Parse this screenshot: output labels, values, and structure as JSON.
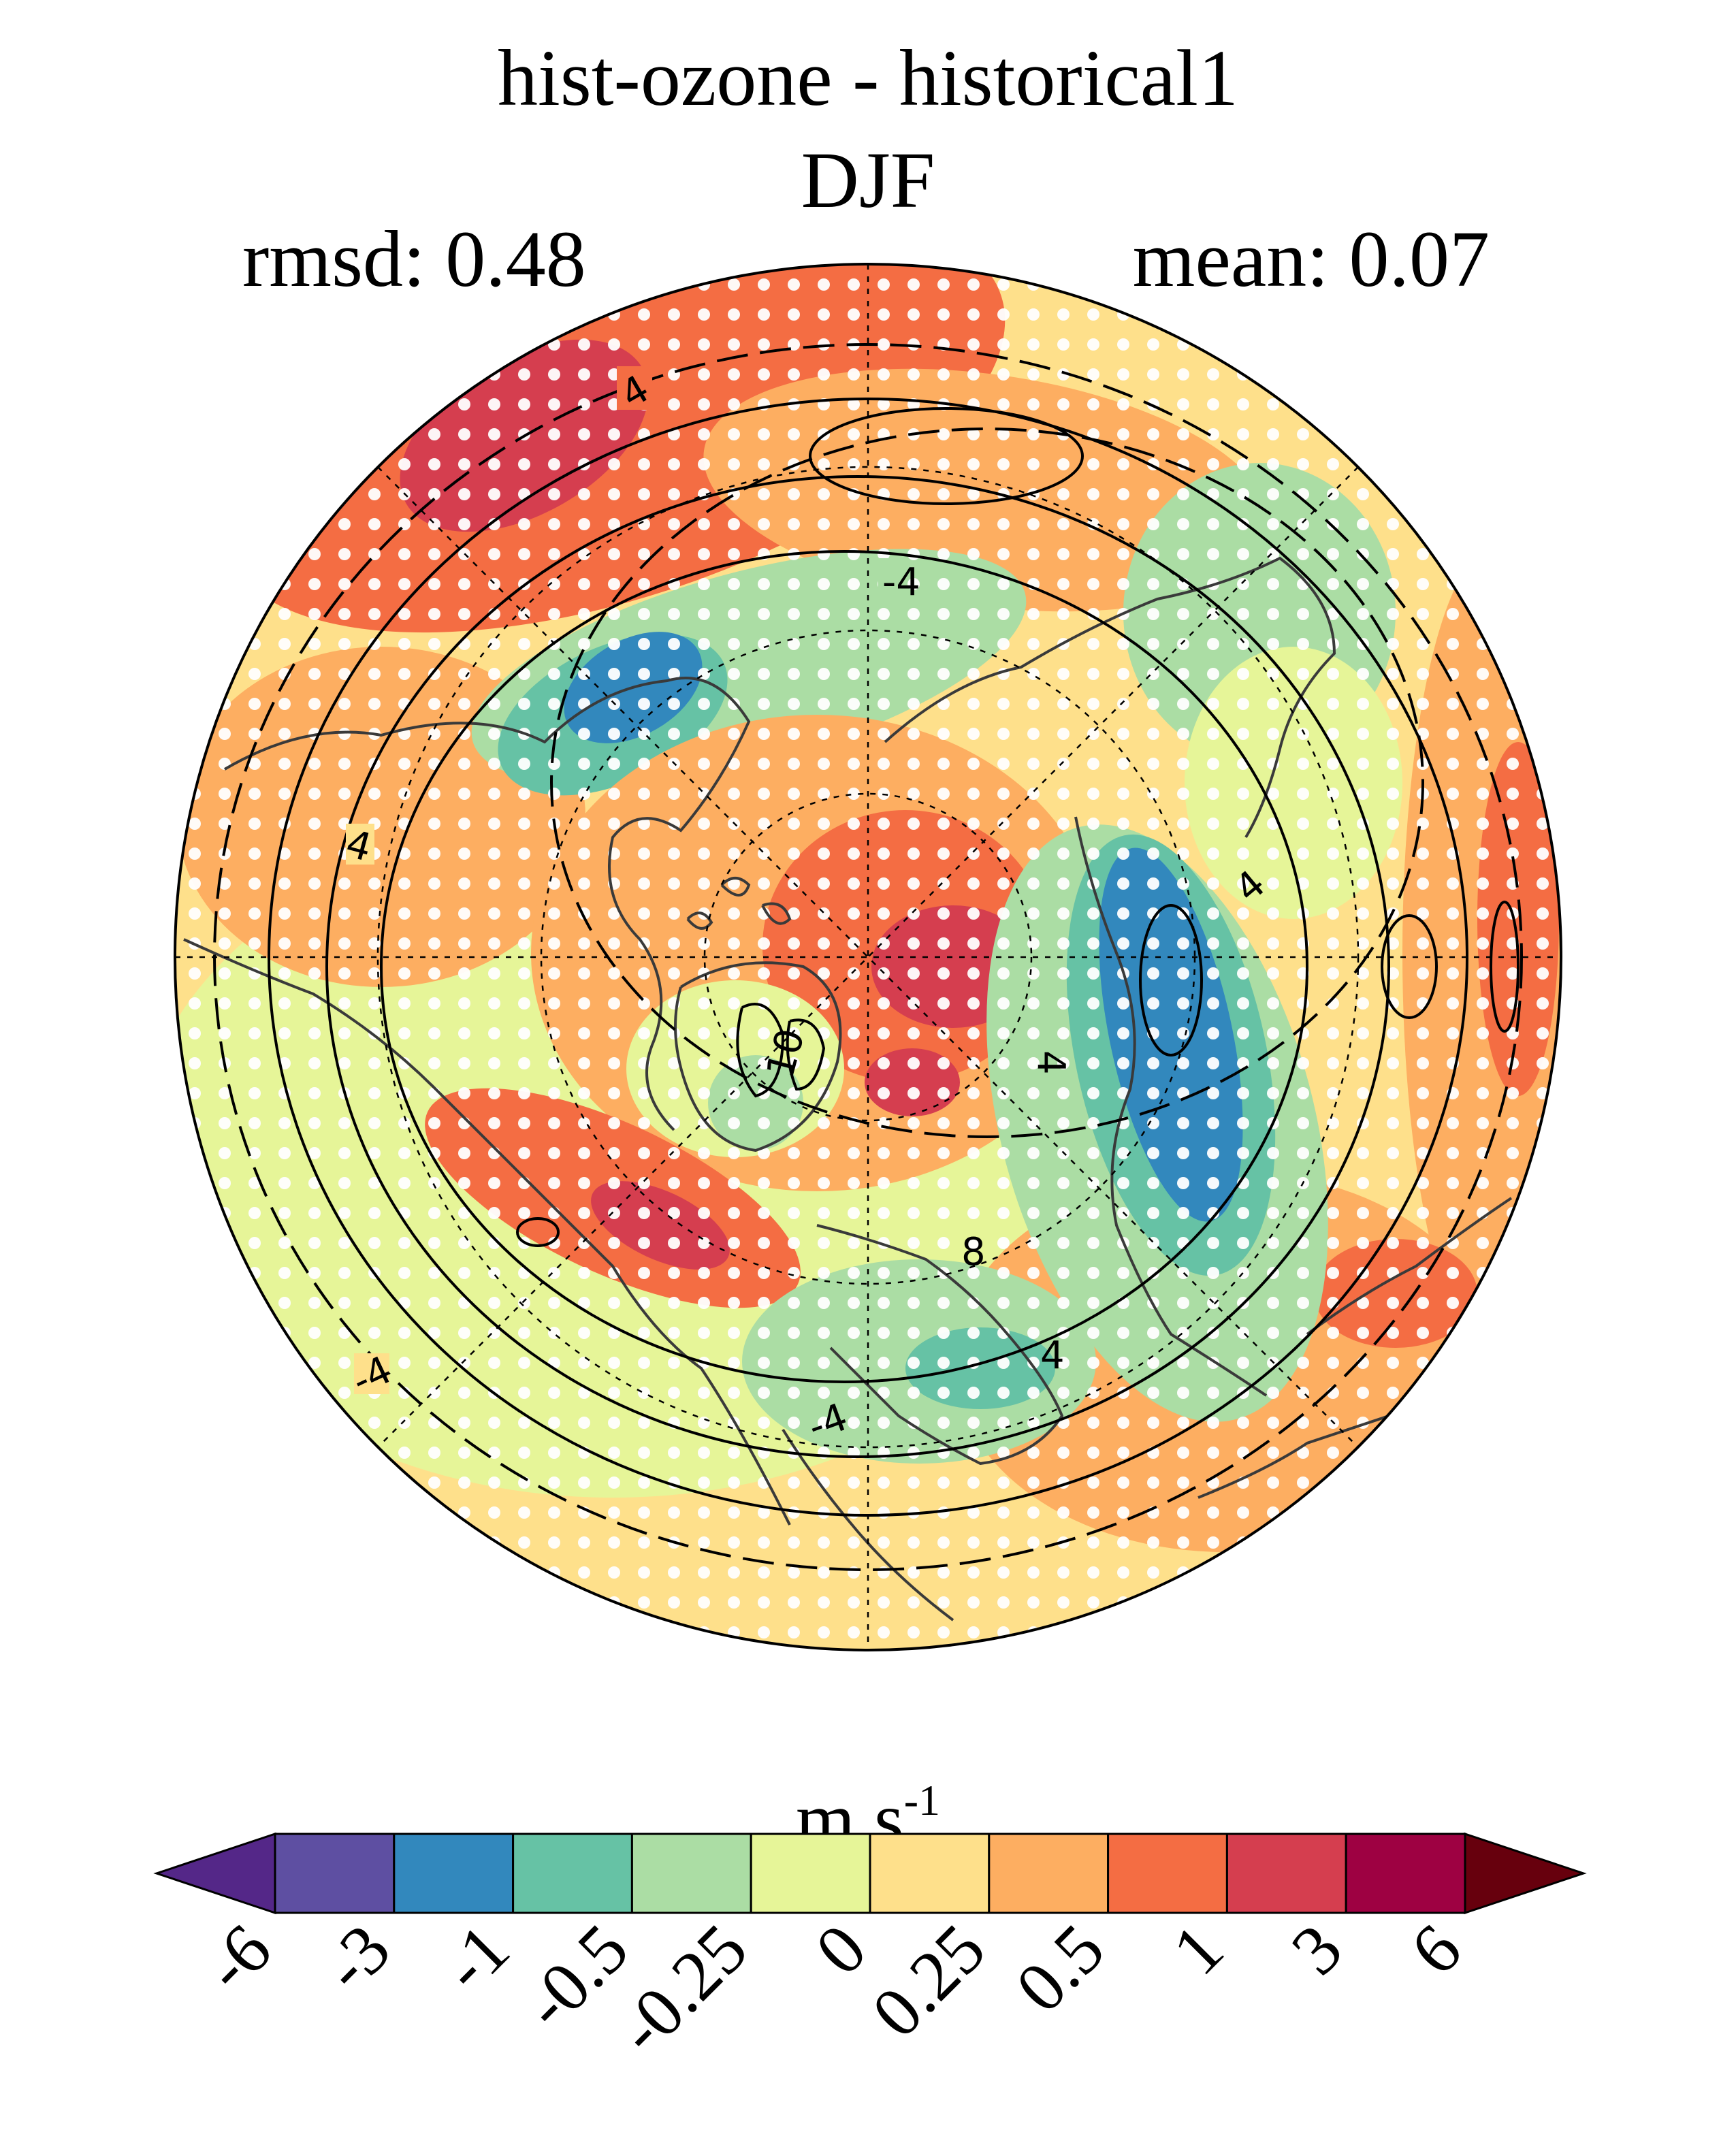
{
  "title_line1": "hist-ozone - historical1",
  "title_line2": "DJF",
  "stat_left": "rmsd: 0.48",
  "stat_right": "mean: 0.07",
  "units_base": "m s",
  "units_exp": "-1",
  "chart_data": {
    "type": "heatmap",
    "projection": "north-polar-stereographic",
    "title": "hist-ozone - historical1 DJF",
    "rmsd": 0.48,
    "mean": 0.07,
    "stippling": true,
    "contour_labels": [
      "4",
      "-4",
      "4",
      "4",
      "-4",
      "4",
      "4",
      "-4",
      "8",
      "10"
    ],
    "colorbar": {
      "label": "m s-1",
      "ticks": [
        "-6",
        "-3",
        "-1",
        "-0.5",
        "-0.25",
        "0",
        "0.25",
        "0.5",
        "1",
        "3",
        "6"
      ],
      "colors": [
        "#5e4fa2",
        "#3288bd",
        "#66c2a5",
        "#abdda4",
        "#e6f598",
        "#fee08b",
        "#fdae61",
        "#f46d43",
        "#d53e4f",
        "#9e0142"
      ],
      "under_color": "#542788",
      "over_color": "#67000d"
    },
    "color_palette": {
      "deep_red": "#d53e4f",
      "red_orange": "#f46d43",
      "orange": "#fdae61",
      "light_yellow": "#fee08b",
      "yellow_green": "#e6f598",
      "light_green": "#abdda4",
      "teal": "#66c2a5",
      "blue": "#3288bd"
    }
  }
}
